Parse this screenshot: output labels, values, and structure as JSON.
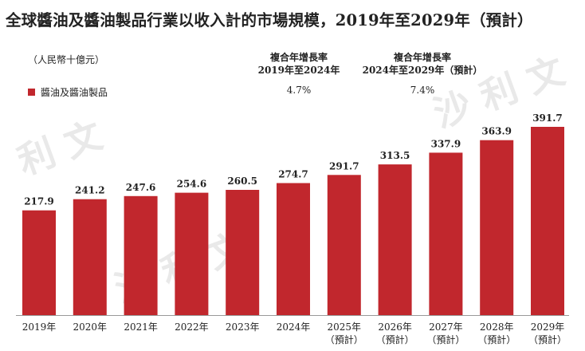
{
  "title": "全球醬油及醬油製品行業以收入計的市場規模，2019年至2029年（預計）",
  "unit_label": "（人民幣十億元）",
  "legend_label": "醬油及醬油製品",
  "cagr": {
    "header1_line1": "複合年增長率",
    "header1_line2": "2019年至2024年",
    "header2_line1": "複合年增長率",
    "header2_line2": "2024年至2029年（預計）",
    "value1": "4.7%",
    "value2": "7.4%"
  },
  "colors": {
    "bar": "#c1272d"
  },
  "chart_data": {
    "type": "bar",
    "title": "全球醬油及醬油製品行業以收入計的市場規模，2019年至2029年（預計）",
    "ylabel": "（人民幣十億元）",
    "ylim": [
      0,
      391.7
    ],
    "grid": false,
    "legend_position": "top-left",
    "categories": [
      "2019年",
      "2020年",
      "2021年",
      "2022年",
      "2023年",
      "2024年",
      "2025年（預計）",
      "2026年（預計）",
      "2027年（預計）",
      "2028年（預計）",
      "2029年（預計）"
    ],
    "category_lines": [
      [
        "2019年"
      ],
      [
        "2020年"
      ],
      [
        "2021年"
      ],
      [
        "2022年"
      ],
      [
        "2023年"
      ],
      [
        "2024年"
      ],
      [
        "2025年",
        "（預計）"
      ],
      [
        "2026年",
        "（預計）"
      ],
      [
        "2027年",
        "（預計）"
      ],
      [
        "2028年",
        "（預計）"
      ],
      [
        "2029年",
        "（預計）"
      ]
    ],
    "series": [
      {
        "name": "醬油及醬油製品",
        "values": [
          217.9,
          241.2,
          247.6,
          254.6,
          260.5,
          274.7,
          291.7,
          313.5,
          337.9,
          363.9,
          391.7
        ],
        "labels": [
          "217.9",
          "241.2",
          "247.6",
          "254.6",
          "260.5",
          "274.7",
          "291.7",
          "313.5",
          "337.9",
          "363.9",
          "391.7"
        ]
      }
    ]
  }
}
